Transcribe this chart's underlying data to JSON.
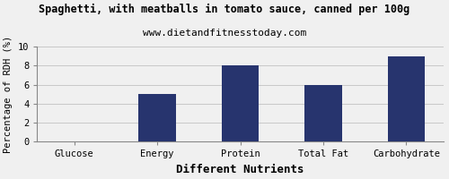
{
  "title": "Spaghetti, with meatballs in tomato sauce, canned per 100g",
  "subtitle": "www.dietandfitnesstoday.com",
  "categories": [
    "Glucose",
    "Energy",
    "Protein",
    "Total Fat",
    "Carbohydrate"
  ],
  "values": [
    0,
    5.0,
    8.0,
    6.0,
    9.0
  ],
  "bar_color": "#27346e",
  "xlabel": "Different Nutrients",
  "ylabel": "Percentage of RDH (%)",
  "ylim": [
    0,
    10
  ],
  "yticks": [
    0,
    2,
    4,
    6,
    8,
    10
  ],
  "background_color": "#f0f0f0",
  "title_fontsize": 8.5,
  "subtitle_fontsize": 8,
  "xlabel_fontsize": 9,
  "ylabel_fontsize": 7.5,
  "tick_fontsize": 7.5,
  "grid_color": "#c8c8c8",
  "bar_width": 0.45
}
